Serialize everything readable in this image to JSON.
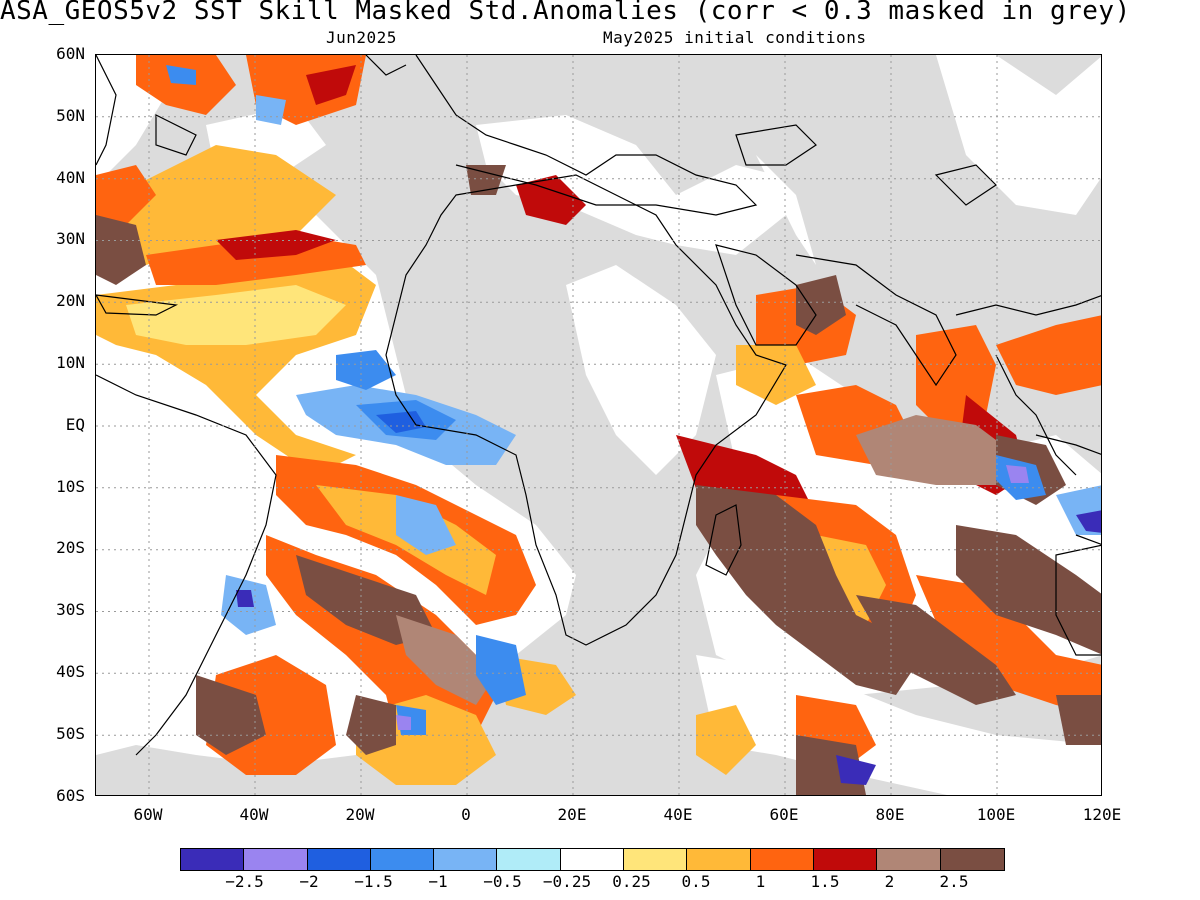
{
  "title": "ASA_GEOS5v2  SST Skill Masked Std.Anomalies (corr < 0.3 masked in grey)",
  "subtitle_left": "Jun2025",
  "subtitle_right": "May2025 initial conditions",
  "lat_labels": [
    "60N",
    "50N",
    "40N",
    "30N",
    "20N",
    "10N",
    "EQ",
    "10S",
    "20S",
    "30S",
    "40S",
    "50S",
    "60S"
  ],
  "lon_labels": [
    "60W",
    "40W",
    "20W",
    "0",
    "20E",
    "40E",
    "60E",
    "80E",
    "100E",
    "120E"
  ],
  "colorbar": {
    "colors": [
      "#3a2cb8",
      "#9a84f0",
      "#1f5fe0",
      "#3c8cef",
      "#78b4f5",
      "#b0ecf8",
      "#ffffff",
      "#ffe57a",
      "#ffb938",
      "#ff6410",
      "#c00a0a",
      "#b08676",
      "#7a4e42"
    ],
    "labels": [
      "-2.5",
      "-2",
      "-1.5",
      "-1",
      "-0.5",
      "-0.25",
      "0.25",
      "0.5",
      "1",
      "1.5",
      "2",
      "2.5"
    ]
  },
  "colors": {
    "mask_grey": "#dcdcdc",
    "land": "#dcdcdc",
    "coast": "#000000",
    "grid": "#9a9a9a"
  }
}
